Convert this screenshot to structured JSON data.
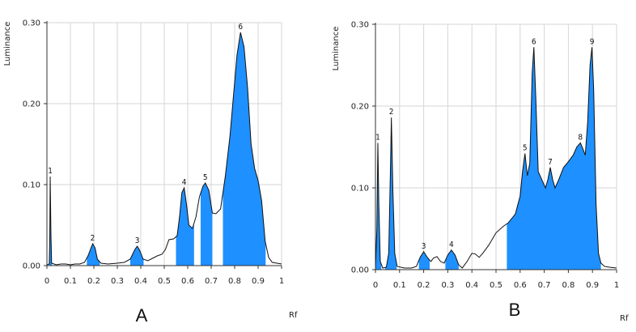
{
  "chart_data": [
    {
      "type": "area",
      "panel_label": "A",
      "xlabel": "Rf",
      "ylabel": "Luminance",
      "xlim": [
        0,
        1
      ],
      "ylim": [
        0,
        0.3
      ],
      "x_ticks": [
        "0",
        "0.1",
        "0.2",
        "0.3",
        "0.4",
        "0.5",
        "0.6",
        "0.7",
        "0.8",
        "0.9",
        "1"
      ],
      "y_ticks": [
        "0.00",
        "0.10",
        "0.20",
        "0.30"
      ],
      "grid": true,
      "fill_color": "#1e90ff",
      "curve": [
        [
          0.0,
          0.001
        ],
        [
          0.01,
          0.002
        ],
        [
          0.012,
          0.03
        ],
        [
          0.014,
          0.11
        ],
        [
          0.017,
          0.04
        ],
        [
          0.02,
          0.003
        ],
        [
          0.04,
          0.001
        ],
        [
          0.06,
          0.002
        ],
        [
          0.08,
          0.002
        ],
        [
          0.1,
          0.001
        ],
        [
          0.12,
          0.002
        ],
        [
          0.14,
          0.002
        ],
        [
          0.16,
          0.004
        ],
        [
          0.175,
          0.012
        ],
        [
          0.188,
          0.022
        ],
        [
          0.195,
          0.027
        ],
        [
          0.205,
          0.022
        ],
        [
          0.215,
          0.008
        ],
        [
          0.23,
          0.003
        ],
        [
          0.26,
          0.002
        ],
        [
          0.3,
          0.003
        ],
        [
          0.33,
          0.004
        ],
        [
          0.355,
          0.008
        ],
        [
          0.375,
          0.02
        ],
        [
          0.385,
          0.024
        ],
        [
          0.395,
          0.019
        ],
        [
          0.41,
          0.008
        ],
        [
          0.43,
          0.006
        ],
        [
          0.45,
          0.009
        ],
        [
          0.47,
          0.012
        ],
        [
          0.49,
          0.014
        ],
        [
          0.505,
          0.02
        ],
        [
          0.52,
          0.032
        ],
        [
          0.54,
          0.033
        ],
        [
          0.555,
          0.037
        ],
        [
          0.565,
          0.06
        ],
        [
          0.575,
          0.09
        ],
        [
          0.585,
          0.096
        ],
        [
          0.595,
          0.075
        ],
        [
          0.605,
          0.05
        ],
        [
          0.62,
          0.046
        ],
        [
          0.635,
          0.06
        ],
        [
          0.65,
          0.085
        ],
        [
          0.665,
          0.098
        ],
        [
          0.675,
          0.102
        ],
        [
          0.69,
          0.093
        ],
        [
          0.705,
          0.065
        ],
        [
          0.72,
          0.064
        ],
        [
          0.74,
          0.07
        ],
        [
          0.76,
          0.11
        ],
        [
          0.78,
          0.16
        ],
        [
          0.795,
          0.21
        ],
        [
          0.81,
          0.26
        ],
        [
          0.825,
          0.288
        ],
        [
          0.84,
          0.27
        ],
        [
          0.855,
          0.22
        ],
        [
          0.87,
          0.15
        ],
        [
          0.885,
          0.12
        ],
        [
          0.9,
          0.105
        ],
        [
          0.915,
          0.08
        ],
        [
          0.93,
          0.03
        ],
        [
          0.945,
          0.01
        ],
        [
          0.96,
          0.004
        ],
        [
          0.98,
          0.003
        ],
        [
          1.0,
          0.002
        ]
      ],
      "filled_ranges": [
        [
          0.008,
          0.022
        ],
        [
          0.17,
          0.225
        ],
        [
          0.355,
          0.412
        ],
        [
          0.55,
          0.627
        ],
        [
          0.655,
          0.705
        ],
        [
          0.75,
          0.932
        ]
      ],
      "peaks": [
        {
          "label": "1",
          "x": 0.014,
          "y": 0.11
        },
        {
          "label": "2",
          "x": 0.195,
          "y": 0.027
        },
        {
          "label": "3",
          "x": 0.385,
          "y": 0.024
        },
        {
          "label": "4",
          "x": 0.585,
          "y": 0.096
        },
        {
          "label": "5",
          "x": 0.675,
          "y": 0.102
        },
        {
          "label": "6",
          "x": 0.825,
          "y": 0.288
        }
      ]
    },
    {
      "type": "area",
      "panel_label": "B",
      "xlabel": "Rf",
      "ylabel": "Luminance",
      "xlim": [
        0,
        1
      ],
      "ylim": [
        0,
        0.3
      ],
      "x_ticks": [
        "0",
        "0.1",
        "0.2",
        "0.3",
        "0.4",
        "0.5",
        "0.6",
        "0.7",
        "0.8",
        "0.9",
        "1"
      ],
      "y_ticks": [
        "0.00",
        "0.10",
        "0.20",
        "0.30"
      ],
      "grid": true,
      "fill_color": "#1e90ff",
      "curve": [
        [
          0.0,
          0.002
        ],
        [
          0.006,
          0.05
        ],
        [
          0.01,
          0.155
        ],
        [
          0.014,
          0.08
        ],
        [
          0.02,
          0.01
        ],
        [
          0.03,
          0.002
        ],
        [
          0.045,
          0.003
        ],
        [
          0.055,
          0.02
        ],
        [
          0.062,
          0.12
        ],
        [
          0.066,
          0.186
        ],
        [
          0.072,
          0.1
        ],
        [
          0.08,
          0.02
        ],
        [
          0.09,
          0.004
        ],
        [
          0.12,
          0.002
        ],
        [
          0.15,
          0.002
        ],
        [
          0.17,
          0.004
        ],
        [
          0.185,
          0.015
        ],
        [
          0.2,
          0.022
        ],
        [
          0.215,
          0.015
        ],
        [
          0.23,
          0.01
        ],
        [
          0.24,
          0.014
        ],
        [
          0.255,
          0.016
        ],
        [
          0.27,
          0.01
        ],
        [
          0.285,
          0.008
        ],
        [
          0.3,
          0.018
        ],
        [
          0.315,
          0.024
        ],
        [
          0.33,
          0.018
        ],
        [
          0.345,
          0.006
        ],
        [
          0.36,
          0.002
        ],
        [
          0.38,
          0.01
        ],
        [
          0.4,
          0.02
        ],
        [
          0.415,
          0.019
        ],
        [
          0.43,
          0.015
        ],
        [
          0.445,
          0.02
        ],
        [
          0.47,
          0.03
        ],
        [
          0.5,
          0.045
        ],
        [
          0.53,
          0.053
        ],
        [
          0.55,
          0.057
        ],
        [
          0.58,
          0.068
        ],
        [
          0.6,
          0.09
        ],
        [
          0.61,
          0.12
        ],
        [
          0.62,
          0.142
        ],
        [
          0.63,
          0.115
        ],
        [
          0.64,
          0.13
        ],
        [
          0.65,
          0.24
        ],
        [
          0.657,
          0.272
        ],
        [
          0.665,
          0.21
        ],
        [
          0.675,
          0.12
        ],
        [
          0.69,
          0.11
        ],
        [
          0.705,
          0.1
        ],
        [
          0.715,
          0.11
        ],
        [
          0.725,
          0.125
        ],
        [
          0.735,
          0.11
        ],
        [
          0.745,
          0.1
        ],
        [
          0.76,
          0.11
        ],
        [
          0.78,
          0.125
        ],
        [
          0.8,
          0.132
        ],
        [
          0.82,
          0.14
        ],
        [
          0.835,
          0.15
        ],
        [
          0.85,
          0.155
        ],
        [
          0.86,
          0.148
        ],
        [
          0.87,
          0.14
        ],
        [
          0.88,
          0.18
        ],
        [
          0.89,
          0.25
        ],
        [
          0.898,
          0.272
        ],
        [
          0.905,
          0.22
        ],
        [
          0.915,
          0.08
        ],
        [
          0.925,
          0.02
        ],
        [
          0.935,
          0.008
        ],
        [
          0.95,
          0.004
        ],
        [
          0.97,
          0.003
        ],
        [
          1.0,
          0.002
        ]
      ],
      "filled_ranges": [
        [
          0.0,
          0.024
        ],
        [
          0.04,
          0.088
        ],
        [
          0.18,
          0.225
        ],
        [
          0.29,
          0.345
        ],
        [
          0.545,
          0.935
        ]
      ],
      "peaks": [
        {
          "label": "1",
          "x": 0.01,
          "y": 0.155
        },
        {
          "label": "2",
          "x": 0.066,
          "y": 0.186
        },
        {
          "label": "3",
          "x": 0.2,
          "y": 0.022
        },
        {
          "label": "4",
          "x": 0.315,
          "y": 0.024
        },
        {
          "label": "5",
          "x": 0.62,
          "y": 0.142
        },
        {
          "label": "6",
          "x": 0.657,
          "y": 0.272
        },
        {
          "label": "7",
          "x": 0.725,
          "y": 0.125
        },
        {
          "label": "8",
          "x": 0.85,
          "y": 0.155
        },
        {
          "label": "9",
          "x": 0.898,
          "y": 0.272
        }
      ]
    }
  ]
}
